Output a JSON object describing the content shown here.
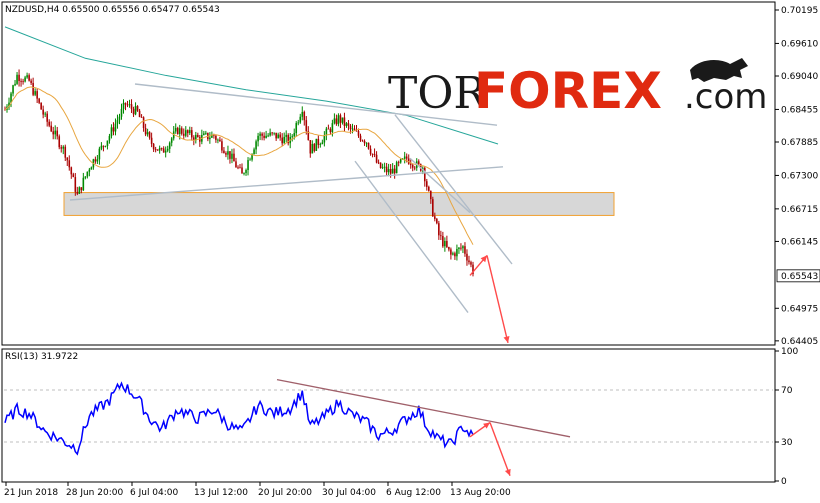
{
  "price_panel": {
    "header": "NZDUSD,H4  0.65500 0.65556 0.65477 0.65543",
    "current_price": "0.65543"
  },
  "rsi_panel": {
    "header": "RSI(13) 31.9722"
  },
  "logo": {
    "part1": "TOR",
    "part2": "FOREX",
    "part3": ".com"
  },
  "colors": {
    "bull": "#008800",
    "bear": "#aa0000",
    "ma_fast": "#e8a640",
    "ma_slow": "#26a69a",
    "rsi_line": "#0000ff",
    "trendline": "#b0bcc8",
    "zone_fill": "#d7d7d7",
    "zone_border": "#f0a030",
    "forecast": "#ff4a4a",
    "rsi_trend": "#a0606a"
  },
  "chart_data": [
    {
      "type": "candlestick",
      "symbol": "NZDUSD",
      "timeframe": "H4",
      "ohlc_last": {
        "open": 0.655,
        "high": 0.65556,
        "low": 0.65477,
        "close": 0.65543
      },
      "yticks": [
        "0.70195",
        "0.69610",
        "0.69040",
        "0.68455",
        "0.67885",
        "0.67300",
        "0.66715",
        "0.66145",
        "0.65543",
        "0.64975",
        "0.64405"
      ],
      "ylim": [
        0.6435,
        0.703
      ],
      "xticks": [
        "21 Jun 2018",
        "28 Jun 20:00",
        "6 Jul 04:00",
        "13 Jul 12:00",
        "20 Jul 20:00",
        "30 Jul 04:00",
        "6 Aug 12:00",
        "13 Aug 20:00"
      ],
      "support_zone": [
        0.666,
        0.67
      ],
      "grid": true
    },
    {
      "type": "line",
      "name": "RSI(13)",
      "value": 31.9722,
      "yticks": [
        "100",
        "70",
        "30",
        "0"
      ],
      "ylim": [
        0,
        100
      ],
      "levels": [
        70,
        30
      ],
      "grid": false
    }
  ]
}
